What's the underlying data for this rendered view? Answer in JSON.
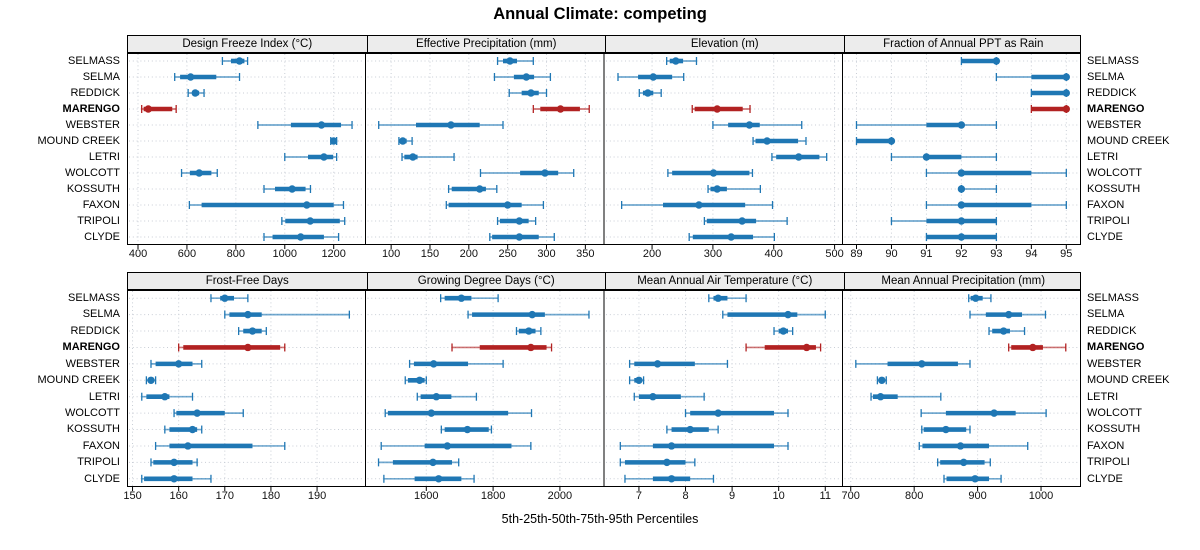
{
  "title": "Annual Climate: competing",
  "caption": "5th-25th-50th-75th-95th Percentiles",
  "percentile_levels": [
    5,
    25,
    50,
    75,
    95
  ],
  "sites": [
    "SELMASS",
    "SELMA",
    "REDDICK",
    "MARENGO",
    "WEBSTER",
    "MOUND CREEK",
    "LETRI",
    "WOLCOTT",
    "KOSSUTH",
    "FAXON",
    "TRIPOLI",
    "CLYDE"
  ],
  "highlight_site": "MARENGO",
  "colors": {
    "series": "#1f77b4",
    "highlight": "#b22222",
    "strip_bg": "#ececec",
    "grid": "#c9ced6",
    "border": "#000000",
    "text": "#000000"
  },
  "chart_data": [
    {
      "type": "dot-interval",
      "title": "Design Freeze Index (°C)",
      "xlim": [
        355,
        1330
      ],
      "ticks": [
        400,
        600,
        800,
        1000,
        1200
      ],
      "values": [
        [
          745,
          780,
          815,
          835,
          848
        ],
        [
          550,
          572,
          615,
          720,
          815
        ],
        [
          605,
          622,
          634,
          650,
          670
        ],
        [
          415,
          423,
          442,
          540,
          556
        ],
        [
          890,
          1025,
          1150,
          1230,
          1275
        ],
        [
          1188,
          1194,
          1200,
          1206,
          1212
        ],
        [
          1000,
          1095,
          1160,
          1198,
          1212
        ],
        [
          578,
          612,
          650,
          700,
          724
        ],
        [
          915,
          960,
          1030,
          1085,
          1105
        ],
        [
          610,
          660,
          1090,
          1200,
          1240
        ],
        [
          988,
          1002,
          1104,
          1225,
          1245
        ],
        [
          915,
          950,
          1065,
          1160,
          1220
        ]
      ]
    },
    {
      "type": "dot-interval",
      "title": "Effective Precipitation (mm)",
      "xlim": [
        67,
        374
      ],
      "ticks": [
        100,
        150,
        200,
        250,
        300,
        350
      ],
      "values": [
        [
          237,
          244,
          253,
          262,
          283
        ],
        [
          233,
          258,
          274,
          284,
          305
        ],
        [
          252,
          268,
          280,
          290,
          300
        ],
        [
          283,
          292,
          318,
          343,
          355
        ],
        [
          84,
          132,
          177,
          214,
          244
        ],
        [
          110,
          112,
          115,
          120,
          127
        ],
        [
          114,
          117,
          128,
          134,
          181
        ],
        [
          215,
          266,
          298,
          315,
          335
        ],
        [
          174,
          178,
          214,
          222,
          236
        ],
        [
          171,
          174,
          250,
          268,
          296
        ],
        [
          237,
          240,
          265,
          277,
          286
        ],
        [
          227,
          230,
          265,
          290,
          310
        ]
      ]
    },
    {
      "type": "dot-interval",
      "title": "Elevation (m)",
      "xlim": [
        121,
        513
      ],
      "ticks": [
        200,
        300,
        400,
        500
      ],
      "values": [
        [
          224,
          229,
          239,
          251,
          273
        ],
        [
          144,
          177,
          202,
          233,
          252
        ],
        [
          179,
          185,
          193,
          202,
          215
        ],
        [
          266,
          270,
          307,
          349,
          361
        ],
        [
          300,
          325,
          360,
          377,
          446
        ],
        [
          366,
          370,
          389,
          440,
          453
        ],
        [
          397,
          404,
          441,
          475,
          487
        ],
        [
          226,
          233,
          301,
          360,
          365
        ],
        [
          292,
          296,
          307,
          323,
          378
        ],
        [
          150,
          218,
          277,
          353,
          398
        ],
        [
          286,
          290,
          348,
          371,
          422
        ],
        [
          261,
          267,
          330,
          366,
          401
        ]
      ]
    },
    {
      "type": "dot-interval",
      "title": "Fraction of Annual PPT as Rain",
      "xlim": [
        88.6,
        95.42
      ],
      "ticks": [
        89,
        90,
        91,
        92,
        93,
        94,
        95
      ],
      "values": [
        [
          92,
          92,
          93,
          93,
          93
        ],
        [
          93,
          94,
          95,
          95,
          95
        ],
        [
          94,
          94,
          95,
          95,
          95
        ],
        [
          94,
          94,
          95,
          95,
          95
        ],
        [
          89,
          91,
          92,
          92,
          93
        ],
        [
          89,
          89,
          90,
          90,
          90
        ],
        [
          90,
          91,
          91,
          92,
          93
        ],
        [
          91,
          92,
          92,
          94,
          95
        ],
        [
          92,
          92,
          92,
          92,
          93
        ],
        [
          91,
          92,
          92,
          94,
          95
        ],
        [
          90,
          91,
          92,
          93,
          93
        ],
        [
          91,
          91,
          92,
          93,
          93
        ]
      ]
    },
    {
      "type": "dot-interval",
      "title": "Frost-Free Days",
      "xlim": [
        148.8,
        200.5
      ],
      "ticks": [
        150,
        160,
        170,
        180,
        190
      ],
      "values": [
        [
          167,
          169,
          170,
          172,
          175
        ],
        [
          170,
          171,
          175,
          178,
          197
        ],
        [
          173,
          174,
          176,
          178,
          179
        ],
        [
          160,
          161,
          175,
          182,
          183
        ],
        [
          154,
          155,
          160,
          163,
          165
        ],
        [
          153,
          153.5,
          154,
          154.5,
          155
        ],
        [
          152,
          153,
          157,
          158,
          163
        ],
        [
          159,
          159.5,
          164,
          170,
          174
        ],
        [
          157,
          158,
          163,
          164,
          165
        ],
        [
          155,
          158,
          162,
          176,
          183
        ],
        [
          154,
          154.5,
          159,
          163,
          164
        ],
        [
          152,
          152.5,
          159,
          163,
          167
        ]
      ]
    },
    {
      "type": "dot-interval",
      "title": "Growing Degree Days (°C)",
      "xlim": [
        1418,
        2132
      ],
      "ticks": [
        1600,
        1800,
        2000
      ],
      "values": [
        [
          1643,
          1655,
          1705,
          1735,
          1815
        ],
        [
          1725,
          1737,
          1917,
          1955,
          2087
        ],
        [
          1870,
          1877,
          1907,
          1927,
          1943
        ],
        [
          1677,
          1760,
          1913,
          1960,
          1975
        ],
        [
          1550,
          1563,
          1622,
          1725,
          1830
        ],
        [
          1537,
          1545,
          1580,
          1595,
          1600
        ],
        [
          1573,
          1583,
          1630,
          1675,
          1750
        ],
        [
          1477,
          1485,
          1615,
          1845,
          1915
        ],
        [
          1645,
          1655,
          1723,
          1787,
          1795
        ],
        [
          1465,
          1595,
          1663,
          1855,
          1913
        ],
        [
          1457,
          1500,
          1620,
          1677,
          1697
        ],
        [
          1473,
          1565,
          1637,
          1705,
          1743
        ]
      ]
    },
    {
      "type": "dot-interval",
      "title": "Mean Annual Air Temperature (°C)",
      "xlim": [
        6.25,
        11.37
      ],
      "ticks": [
        7,
        8,
        9,
        10,
        11
      ],
      "values": [
        [
          8.5,
          8.6,
          8.7,
          8.9,
          9.3
        ],
        [
          8.8,
          8.9,
          10.2,
          10.4,
          11.0
        ],
        [
          9.9,
          10.0,
          10.1,
          10.2,
          10.3
        ],
        [
          9.3,
          9.7,
          10.6,
          10.8,
          10.9
        ],
        [
          6.8,
          6.9,
          7.4,
          8.2,
          8.9
        ],
        [
          6.8,
          6.9,
          7.0,
          7.05,
          7.1
        ],
        [
          6.9,
          7.0,
          7.3,
          7.9,
          8.4
        ],
        [
          8.0,
          8.1,
          8.7,
          9.9,
          10.2
        ],
        [
          7.6,
          7.7,
          8.1,
          8.5,
          8.7
        ],
        [
          6.6,
          7.3,
          7.7,
          9.9,
          10.2
        ],
        [
          6.6,
          6.7,
          7.6,
          8.0,
          8.2
        ],
        [
          6.7,
          7.3,
          7.7,
          8.1,
          8.6
        ]
      ]
    },
    {
      "type": "dot-interval",
      "title": "Mean Annual Precipitation (mm)",
      "xlim": [
        687,
        1063
      ],
      "ticks": [
        700,
        800,
        900,
        1000
      ],
      "values": [
        [
          886,
          889,
          897,
          908,
          921
        ],
        [
          888,
          913,
          949,
          970,
          1007
        ],
        [
          918,
          923,
          941,
          951,
          974
        ],
        [
          949,
          953,
          987,
          1003,
          1039
        ],
        [
          708,
          758,
          812,
          869,
          888
        ],
        [
          742,
          745,
          749,
          753,
          756
        ],
        [
          732,
          735,
          747,
          774,
          842
        ],
        [
          811,
          850,
          926,
          960,
          1008
        ],
        [
          812,
          815,
          850,
          882,
          888
        ],
        [
          808,
          813,
          873,
          918,
          979
        ],
        [
          837,
          841,
          878,
          911,
          920
        ],
        [
          847,
          851,
          896,
          918,
          937
        ]
      ]
    }
  ]
}
